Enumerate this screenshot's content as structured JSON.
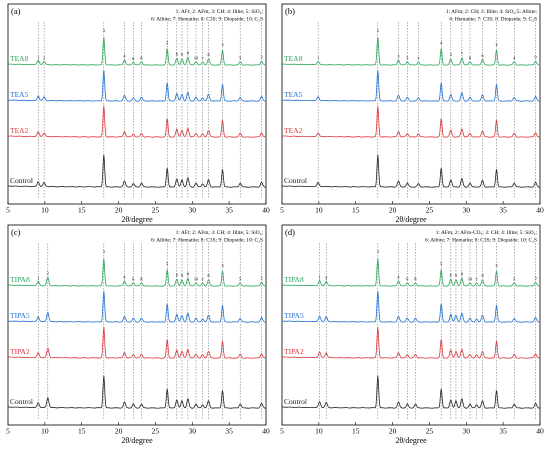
{
  "colors": {
    "green": "#2aa55a",
    "blue": "#1f6fd1",
    "red": "#d9353a",
    "black": "#222222",
    "refline": "#555555"
  },
  "chart_data": [
    {
      "type": "line",
      "panel_label": "(a)",
      "xlabel": "2θ/degree",
      "xlim": [
        5,
        40
      ],
      "xticks": [
        5,
        10,
        15,
        20,
        25,
        30,
        35,
        40
      ],
      "legend_lines": [
        "1: AFt; 2: AFm; 3: CH; 4: Illite; 5: SiO₂;",
        "6: Albite; 7: Hematite; 8: C3S; 9: Diopside; 10: C₂S"
      ],
      "series": [
        {
          "name": "TEA8",
          "color": "green"
        },
        {
          "name": "TEA5",
          "color": "blue"
        },
        {
          "name": "TEA2",
          "color": "red"
        },
        {
          "name": "Control",
          "color": "black"
        }
      ],
      "peaks": [
        {
          "x": 9.1,
          "h": 0.15,
          "label": "1"
        },
        {
          "x": 9.9,
          "h": 0.12,
          "label": "2"
        },
        {
          "x": 18.0,
          "h": 1.0,
          "label": "3"
        },
        {
          "x": 20.8,
          "h": 0.18,
          "label": "4"
        },
        {
          "x": 22.0,
          "h": 0.1,
          "label": "6"
        },
        {
          "x": 23.1,
          "h": 0.12,
          "label": "8"
        },
        {
          "x": 26.6,
          "h": 0.6,
          "label": "5"
        },
        {
          "x": 27.9,
          "h": 0.25,
          "label": "6"
        },
        {
          "x": 28.6,
          "h": 0.22,
          "label": "9"
        },
        {
          "x": 29.4,
          "h": 0.28,
          "label": "8"
        },
        {
          "x": 30.5,
          "h": 0.12,
          "label": "10"
        },
        {
          "x": 31.4,
          "h": 0.1,
          "label": "7"
        },
        {
          "x": 32.2,
          "h": 0.22,
          "label": "8"
        },
        {
          "x": 34.1,
          "h": 0.55,
          "label": "3"
        },
        {
          "x": 36.5,
          "h": 0.12,
          "label": "5"
        },
        {
          "x": 39.4,
          "h": 0.14,
          "label": "3"
        }
      ]
    },
    {
      "type": "line",
      "panel_label": "(b)",
      "xlabel": "2θ/degree",
      "xlim": [
        5,
        40
      ],
      "xticks": [
        5,
        10,
        15,
        20,
        25,
        30,
        35,
        40
      ],
      "legend_lines": [
        "1: AFm; 2: CH; 3: Illite; 4: SiO₂;5: Albite;",
        "6: Hematite; 7: C3S; 8: Diopside; 9: C₂S"
      ],
      "series": [
        {
          "name": "TEA8",
          "color": "green"
        },
        {
          "name": "TEA5",
          "color": "blue"
        },
        {
          "name": "TEA2",
          "color": "red"
        },
        {
          "name": "Control",
          "color": "black"
        }
      ],
      "peaks": [
        {
          "x": 9.9,
          "h": 0.12,
          "label": "1"
        },
        {
          "x": 18.0,
          "h": 1.0,
          "label": "2"
        },
        {
          "x": 20.8,
          "h": 0.18,
          "label": "3"
        },
        {
          "x": 22.0,
          "h": 0.12,
          "label": "5"
        },
        {
          "x": 23.5,
          "h": 0.1,
          "label": "7"
        },
        {
          "x": 26.6,
          "h": 0.6,
          "label": "4"
        },
        {
          "x": 27.9,
          "h": 0.22,
          "label": "5"
        },
        {
          "x": 29.4,
          "h": 0.26,
          "label": "7"
        },
        {
          "x": 30.5,
          "h": 0.12,
          "label": "8"
        },
        {
          "x": 32.2,
          "h": 0.2,
          "label": "6"
        },
        {
          "x": 34.1,
          "h": 0.55,
          "label": "2"
        },
        {
          "x": 36.5,
          "h": 0.12,
          "label": "4"
        },
        {
          "x": 39.4,
          "h": 0.14,
          "label": "9"
        }
      ]
    },
    {
      "type": "line",
      "panel_label": "(c)",
      "xlabel": "2θ/degree",
      "xlim": [
        5,
        40
      ],
      "xticks": [
        5,
        10,
        15,
        20,
        25,
        30,
        35,
        40
      ],
      "legend_lines": [
        "1: AFt; 2: AFm; 3: CH; 4: Illite; 5: SiO₂;",
        "6: Albite; 7: Hematite; 8: C3S; 9: Diopside; 10: C₂S"
      ],
      "series": [
        {
          "name": "TIPA8",
          "color": "green"
        },
        {
          "name": "TIPA5",
          "color": "blue"
        },
        {
          "name": "TIPA2",
          "color": "red"
        },
        {
          "name": "Control",
          "color": "black"
        }
      ],
      "peaks": [
        {
          "x": 9.1,
          "h": 0.15,
          "label": "1"
        },
        {
          "x": 10.4,
          "h": 0.3,
          "label": "2"
        },
        {
          "x": 18.0,
          "h": 1.0,
          "label": "3"
        },
        {
          "x": 20.8,
          "h": 0.18,
          "label": "4"
        },
        {
          "x": 22.0,
          "h": 0.12,
          "label": "6"
        },
        {
          "x": 23.1,
          "h": 0.12,
          "label": "8"
        },
        {
          "x": 26.6,
          "h": 0.6,
          "label": "5"
        },
        {
          "x": 27.9,
          "h": 0.25,
          "label": "6"
        },
        {
          "x": 28.6,
          "h": 0.22,
          "label": "9"
        },
        {
          "x": 29.4,
          "h": 0.28,
          "label": "8"
        },
        {
          "x": 30.5,
          "h": 0.12,
          "label": "10"
        },
        {
          "x": 31.4,
          "h": 0.1,
          "label": "7"
        },
        {
          "x": 32.2,
          "h": 0.22,
          "label": "8"
        },
        {
          "x": 34.1,
          "h": 0.55,
          "label": "3"
        },
        {
          "x": 36.5,
          "h": 0.12,
          "label": "5"
        },
        {
          "x": 39.4,
          "h": 0.14,
          "label": "3"
        }
      ]
    },
    {
      "type": "line",
      "panel_label": "(d)",
      "xlabel": "2θ/degree",
      "xlim": [
        5,
        40
      ],
      "xticks": [
        5,
        10,
        15,
        20,
        25,
        30,
        35,
        40
      ],
      "legend_lines": [
        "1: AFm; 2: AFm-CO₃; 3: CH; 4: Illite; 5: SiO₂;",
        "6: Albite; 7: Hematite; 8: C3S; 9: Diopside; 10: C₂S"
      ],
      "series": [
        {
          "name": "TIPA8",
          "color": "green"
        },
        {
          "name": "TIPA5",
          "color": "blue"
        },
        {
          "name": "TIPA2",
          "color": "red"
        },
        {
          "name": "Control",
          "color": "black"
        }
      ],
      "peaks": [
        {
          "x": 10.1,
          "h": 0.18,
          "label": "1"
        },
        {
          "x": 11.0,
          "h": 0.16,
          "label": "2"
        },
        {
          "x": 18.0,
          "h": 1.0,
          "label": "3"
        },
        {
          "x": 20.8,
          "h": 0.18,
          "label": "4"
        },
        {
          "x": 22.0,
          "h": 0.12,
          "label": "6"
        },
        {
          "x": 23.1,
          "h": 0.12,
          "label": "8"
        },
        {
          "x": 26.6,
          "h": 0.6,
          "label": "5"
        },
        {
          "x": 27.9,
          "h": 0.25,
          "label": "6"
        },
        {
          "x": 28.6,
          "h": 0.22,
          "label": "9"
        },
        {
          "x": 29.4,
          "h": 0.28,
          "label": "8"
        },
        {
          "x": 30.5,
          "h": 0.12,
          "label": "10"
        },
        {
          "x": 31.4,
          "h": 0.1,
          "label": "7"
        },
        {
          "x": 32.2,
          "h": 0.22,
          "label": "8"
        },
        {
          "x": 34.1,
          "h": 0.55,
          "label": "3"
        },
        {
          "x": 36.5,
          "h": 0.12,
          "label": "5"
        },
        {
          "x": 39.4,
          "h": 0.14,
          "label": "3"
        }
      ]
    }
  ]
}
